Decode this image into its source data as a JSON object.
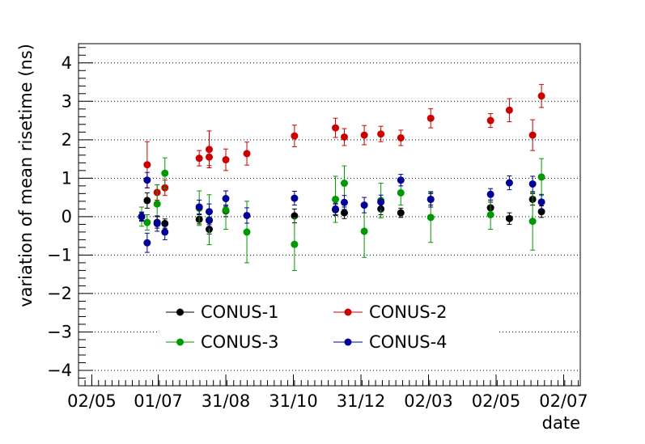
{
  "chart_data": {
    "type": "scatter",
    "title": "",
    "xlabel": "date",
    "ylabel": "variation of mean risetime (ns)",
    "x_unit": "date (2018-2019)",
    "xlim": [
      "2018-04-20",
      "2019-07-17"
    ],
    "ylim": [
      -4.4,
      4.5
    ],
    "grid": "horizontal dotted",
    "legend_placement": "bottom-center",
    "x_ticks": [
      {
        "date": "2018-05-02",
        "label": "02/05"
      },
      {
        "date": "2018-07-01",
        "label": "01/07"
      },
      {
        "date": "2018-08-31",
        "label": "31/08"
      },
      {
        "date": "2018-10-31",
        "label": "31/10"
      },
      {
        "date": "2018-12-31",
        "label": "31/12"
      },
      {
        "date": "2019-03-02",
        "label": "02/03"
      },
      {
        "date": "2019-05-02",
        "label": "02/05"
      },
      {
        "date": "2019-07-02",
        "label": "02/07"
      }
    ],
    "y_ticks": [
      {
        "value": 4,
        "label": "4"
      },
      {
        "value": 3,
        "label": "3"
      },
      {
        "value": 2,
        "label": "2"
      },
      {
        "value": 1,
        "label": "1"
      },
      {
        "value": 0,
        "label": "0"
      },
      {
        "value": -1,
        "label": "−1"
      },
      {
        "value": -2,
        "label": "−2"
      },
      {
        "value": -3,
        "label": "−3"
      },
      {
        "value": -4,
        "label": "−4"
      }
    ],
    "series": [
      {
        "name": "CONUS-1",
        "color": "#000000",
        "points": [
          {
            "x": "2018-06-16",
            "y": 0.0,
            "err": 0.1
          },
          {
            "x": "2018-06-21",
            "y": 0.42,
            "err": 0.2
          },
          {
            "x": "2018-06-30",
            "y": -0.15,
            "err": 0.15
          },
          {
            "x": "2018-07-07",
            "y": -0.18,
            "err": 0.12
          },
          {
            "x": "2018-08-07",
            "y": -0.07,
            "err": 0.12
          },
          {
            "x": "2018-08-16",
            "y": -0.33,
            "err": 0.12
          },
          {
            "x": "2018-08-31",
            "y": 0.15,
            "err": 0.15
          },
          {
            "x": "2018-11-01",
            "y": 0.02,
            "err": 0.18
          },
          {
            "x": "2018-12-08",
            "y": 0.18,
            "err": 0.15
          },
          {
            "x": "2018-12-16",
            "y": 0.1,
            "err": 0.15
          },
          {
            "x": "2019-01-18",
            "y": 0.2,
            "err": 0.15
          },
          {
            "x": "2019-02-05",
            "y": 0.1,
            "err": 0.12
          },
          {
            "x": "2019-03-04",
            "y": 0.45,
            "err": 0.15
          },
          {
            "x": "2019-04-27",
            "y": 0.23,
            "err": 0.15
          },
          {
            "x": "2019-05-14",
            "y": -0.05,
            "err": 0.15
          },
          {
            "x": "2019-06-04",
            "y": 0.45,
            "err": 0.15
          },
          {
            "x": "2019-06-12",
            "y": 0.13,
            "err": 0.15
          }
        ]
      },
      {
        "name": "CONUS-2",
        "color": "#cc0000",
        "points": [
          {
            "x": "2018-06-21",
            "y": 1.35,
            "err": 0.6
          },
          {
            "x": "2018-06-30",
            "y": 0.63,
            "err": 0.2
          },
          {
            "x": "2018-07-07",
            "y": 0.75,
            "err": 0.2
          },
          {
            "x": "2018-08-07",
            "y": 1.52,
            "err": 0.2
          },
          {
            "x": "2018-08-16",
            "y": 1.75,
            "err": 0.48
          },
          {
            "x": "2018-08-16",
            "y": 1.55,
            "err": 0.22
          },
          {
            "x": "2018-08-31",
            "y": 1.48,
            "err": 0.28
          },
          {
            "x": "2018-09-19",
            "y": 1.64,
            "err": 0.3
          },
          {
            "x": "2018-11-01",
            "y": 2.1,
            "err": 0.28
          },
          {
            "x": "2018-12-08",
            "y": 2.31,
            "err": 0.25
          },
          {
            "x": "2018-12-16",
            "y": 2.07,
            "err": 0.22
          },
          {
            "x": "2019-01-03",
            "y": 2.12,
            "err": 0.25
          },
          {
            "x": "2019-01-18",
            "y": 2.15,
            "err": 0.2
          },
          {
            "x": "2019-02-05",
            "y": 2.05,
            "err": 0.2
          },
          {
            "x": "2019-03-04",
            "y": 2.56,
            "err": 0.25
          },
          {
            "x": "2019-04-27",
            "y": 2.5,
            "err": 0.18
          },
          {
            "x": "2019-05-14",
            "y": 2.77,
            "err": 0.3
          },
          {
            "x": "2019-06-04",
            "y": 2.12,
            "err": 0.4
          },
          {
            "x": "2019-06-12",
            "y": 3.14,
            "err": 0.3
          }
        ]
      },
      {
        "name": "CONUS-3",
        "color": "#009900",
        "points": [
          {
            "x": "2018-06-16",
            "y": 0.0,
            "err": 0.25
          },
          {
            "x": "2018-06-21",
            "y": -0.15,
            "err": 0.2
          },
          {
            "x": "2018-06-30",
            "y": 0.33,
            "err": 0.5
          },
          {
            "x": "2018-07-07",
            "y": 1.13,
            "err": 0.4
          },
          {
            "x": "2018-08-07",
            "y": 0.22,
            "err": 0.45
          },
          {
            "x": "2018-08-16",
            "y": -0.08,
            "err": 0.65
          },
          {
            "x": "2018-08-31",
            "y": 0.17,
            "err": 0.5
          },
          {
            "x": "2018-09-19",
            "y": -0.4,
            "err": 0.8
          },
          {
            "x": "2018-11-01",
            "y": -0.72,
            "err": 0.68
          },
          {
            "x": "2018-12-08",
            "y": 0.45,
            "err": 0.6
          },
          {
            "x": "2018-12-16",
            "y": 0.87,
            "err": 0.45
          },
          {
            "x": "2019-01-03",
            "y": -0.38,
            "err": 0.68
          },
          {
            "x": "2019-01-18",
            "y": 0.42,
            "err": 0.45
          },
          {
            "x": "2019-02-05",
            "y": 0.62,
            "err": 0.32
          },
          {
            "x": "2019-03-04",
            "y": -0.02,
            "err": 0.65
          },
          {
            "x": "2019-04-27",
            "y": 0.05,
            "err": 0.38
          },
          {
            "x": "2019-06-04",
            "y": -0.12,
            "err": 0.75
          },
          {
            "x": "2019-06-12",
            "y": 1.03,
            "err": 0.48
          }
        ]
      },
      {
        "name": "CONUS-4",
        "color": "#000099",
        "points": [
          {
            "x": "2018-06-16",
            "y": 0.0,
            "err": 0.12
          },
          {
            "x": "2018-06-21",
            "y": 0.95,
            "err": 0.2
          },
          {
            "x": "2018-06-21",
            "y": -0.68,
            "err": 0.25
          },
          {
            "x": "2018-06-30",
            "y": -0.18,
            "err": 0.2
          },
          {
            "x": "2018-07-07",
            "y": -0.4,
            "err": 0.2
          },
          {
            "x": "2018-08-07",
            "y": 0.25,
            "err": 0.18
          },
          {
            "x": "2018-08-16",
            "y": 0.13,
            "err": 0.2
          },
          {
            "x": "2018-08-16",
            "y": -0.1,
            "err": 0.2
          },
          {
            "x": "2018-08-31",
            "y": 0.47,
            "err": 0.2
          },
          {
            "x": "2018-09-19",
            "y": 0.03,
            "err": 0.2
          },
          {
            "x": "2018-11-01",
            "y": 0.48,
            "err": 0.18
          },
          {
            "x": "2018-12-08",
            "y": 0.2,
            "err": 0.15
          },
          {
            "x": "2018-12-16",
            "y": 0.37,
            "err": 0.18
          },
          {
            "x": "2019-01-03",
            "y": 0.3,
            "err": 0.2
          },
          {
            "x": "2019-01-18",
            "y": 0.38,
            "err": 0.18
          },
          {
            "x": "2019-02-05",
            "y": 0.95,
            "err": 0.15
          },
          {
            "x": "2019-03-04",
            "y": 0.45,
            "err": 0.2
          },
          {
            "x": "2019-04-27",
            "y": 0.58,
            "err": 0.15
          },
          {
            "x": "2019-05-14",
            "y": 0.88,
            "err": 0.18
          },
          {
            "x": "2019-06-04",
            "y": 0.85,
            "err": 0.2
          },
          {
            "x": "2019-06-12",
            "y": 0.38,
            "err": 0.2
          }
        ]
      }
    ],
    "legend_order": [
      "CONUS-1",
      "CONUS-2",
      "CONUS-3",
      "CONUS-4"
    ]
  }
}
